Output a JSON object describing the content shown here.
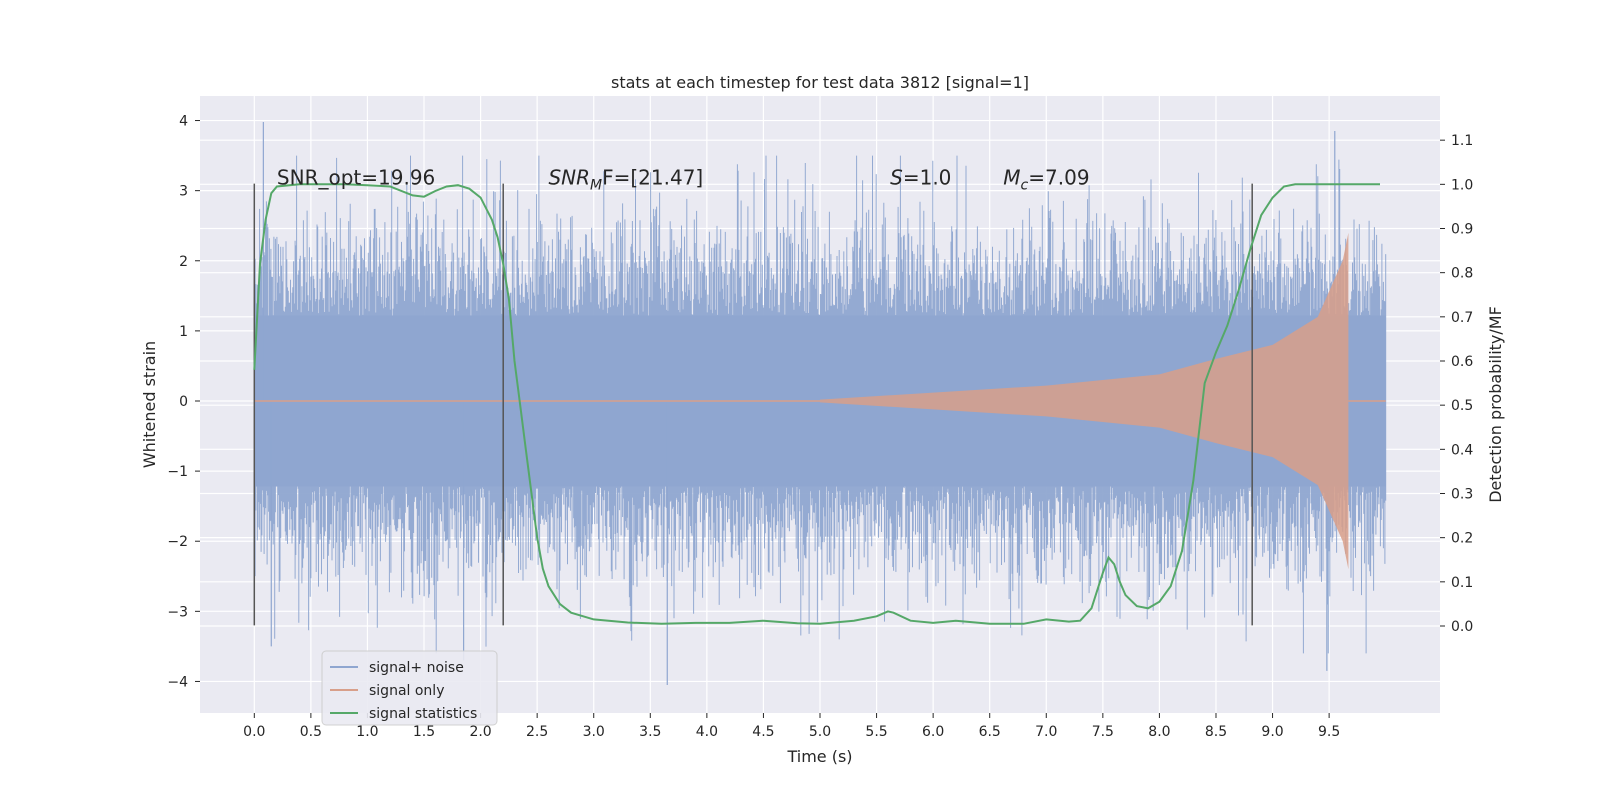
{
  "chart_data": {
    "type": "line",
    "title": "stats at each timestep for test data 3812 [signal=1]",
    "xlabel": "Time (s)",
    "ylabel_left": "Whitened strain",
    "ylabel_right": "Detection probability/MF",
    "xlim": [
      -0.48,
      10.48
    ],
    "ylim_left": [
      -4.45,
      4.35
    ],
    "ylim_right": [
      -0.197,
      1.2
    ],
    "x_ticks": [
      "0.0",
      "0.5",
      "1.0",
      "1.5",
      "2.0",
      "2.5",
      "3.0",
      "3.5",
      "4.0",
      "4.5",
      "5.0",
      "5.5",
      "6.0",
      "6.5",
      "7.0",
      "7.5",
      "8.0",
      "8.5",
      "9.0",
      "9.5"
    ],
    "y_left_ticks": [
      "−4",
      "−3",
      "−2",
      "−1",
      "0",
      "1",
      "2",
      "3",
      "4"
    ],
    "y_right_ticks": [
      "0.0",
      "0.1",
      "0.2",
      "0.3",
      "0.4",
      "0.5",
      "0.6",
      "0.7",
      "0.8",
      "0.9",
      "1.0",
      "1.1"
    ],
    "grid": true,
    "legend_position": "lower-left",
    "series": [
      {
        "name": "signal+ noise",
        "color": "#8fa6d0",
        "axis": "left",
        "x_range": [
          0,
          10
        ],
        "approx_envelope": [
          -3.2,
          3.1
        ],
        "approx_extremes": {
          "max": 3.98,
          "min": -4.05
        }
      },
      {
        "name": "signal only",
        "color": "#d89f8a",
        "axis": "left",
        "description_points": [
          {
            "x": 5.0,
            "amp": 0.02
          },
          {
            "x": 6.0,
            "amp": 0.12
          },
          {
            "x": 7.0,
            "amp": 0.22
          },
          {
            "x": 8.0,
            "amp": 0.38
          },
          {
            "x": 8.5,
            "amp": 0.6
          },
          {
            "x": 9.0,
            "amp": 0.8
          },
          {
            "x": 9.4,
            "amp": 1.2
          },
          {
            "x": 9.62,
            "amp": 2.0
          },
          {
            "x": 9.67,
            "amp": 2.4
          }
        ],
        "merger_time": 9.67
      },
      {
        "name": "signal statistics",
        "color": "#55a868",
        "axis": "right",
        "x": [
          0.0,
          0.05,
          0.1,
          0.15,
          0.2,
          0.4,
          0.6,
          0.8,
          1.0,
          1.2,
          1.4,
          1.5,
          1.6,
          1.7,
          1.8,
          1.9,
          2.0,
          2.1,
          2.15,
          2.2,
          2.25,
          2.3,
          2.35,
          2.4,
          2.45,
          2.5,
          2.55,
          2.6,
          2.7,
          2.8,
          3.0,
          3.3,
          3.6,
          3.9,
          4.2,
          4.5,
          4.8,
          5.0,
          5.3,
          5.5,
          5.6,
          5.65,
          5.8,
          6.0,
          6.2,
          6.5,
          6.8,
          7.0,
          7.2,
          7.3,
          7.4,
          7.5,
          7.55,
          7.6,
          7.65,
          7.7,
          7.8,
          7.9,
          8.0,
          8.1,
          8.2,
          8.3,
          8.4,
          8.5,
          8.6,
          8.7,
          8.8,
          8.9,
          9.0,
          9.1,
          9.2,
          9.3,
          9.5,
          9.7,
          9.9,
          9.95
        ],
        "y": [
          0.58,
          0.82,
          0.92,
          0.98,
          0.995,
          1.0,
          1.0,
          1.0,
          0.998,
          0.995,
          0.975,
          0.972,
          0.985,
          0.995,
          0.998,
          0.99,
          0.97,
          0.92,
          0.88,
          0.82,
          0.74,
          0.6,
          0.5,
          0.4,
          0.3,
          0.2,
          0.13,
          0.09,
          0.05,
          0.03,
          0.015,
          0.008,
          0.005,
          0.007,
          0.007,
          0.012,
          0.006,
          0.005,
          0.012,
          0.022,
          0.033,
          0.03,
          0.012,
          0.007,
          0.012,
          0.005,
          0.005,
          0.015,
          0.01,
          0.012,
          0.04,
          0.12,
          0.155,
          0.14,
          0.1,
          0.07,
          0.045,
          0.04,
          0.055,
          0.09,
          0.17,
          0.33,
          0.55,
          0.62,
          0.68,
          0.76,
          0.85,
          0.93,
          0.97,
          0.995,
          1.0,
          1.0,
          1.0,
          1.0,
          1.0,
          1.0
        ]
      }
    ],
    "vlines": [
      {
        "x": 0.0,
        "y_range_left": [
          -3.2,
          3.1
        ]
      },
      {
        "x": 2.2,
        "y_range_left": [
          -3.2,
          3.1
        ]
      },
      {
        "x": 8.82,
        "y_range_left": [
          -3.2,
          3.1
        ]
      }
    ],
    "annotations": [
      {
        "text": "SNR_opt=19.96",
        "x": 0.2,
        "y": 3.1
      },
      {
        "text_main": "SNR",
        "text_sub": "M",
        "text_rest": "F=[21.47]",
        "x": 2.6,
        "y": 3.1
      },
      {
        "text_main": "S",
        "text_rest": "=1.0",
        "x": 5.62,
        "y": 3.1
      },
      {
        "text_main": "M",
        "text_sub": "c",
        "text_rest": "=7.09",
        "x": 6.62,
        "y": 3.1
      }
    ]
  }
}
